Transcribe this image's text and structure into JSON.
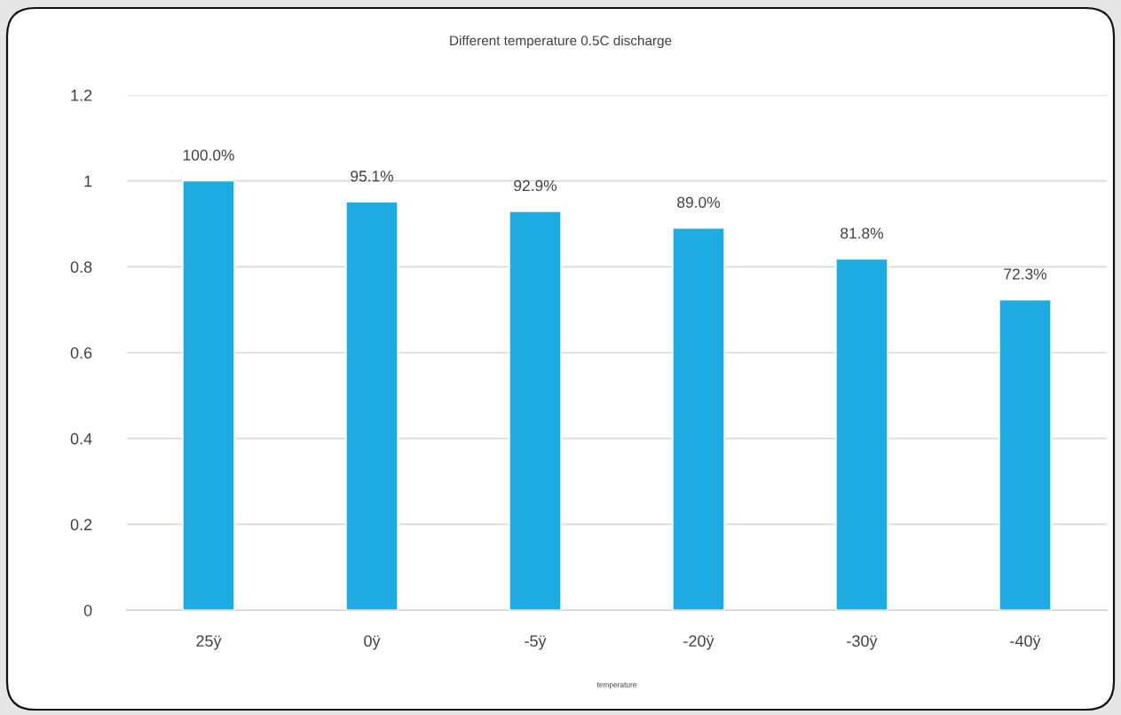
{
  "chart_data": {
    "type": "bar",
    "title": "Different temperature 0.5C discharge",
    "xlabel": "temperature",
    "categories": [
      "25ÿ",
      "0ÿ",
      "-5ÿ",
      "-20ÿ",
      "-30ÿ",
      "-40ÿ"
    ],
    "values": [
      1.0,
      0.951,
      0.929,
      0.89,
      0.818,
      0.723
    ],
    "value_labels": [
      "100.0%",
      "95.1%",
      "92.9%",
      "89.0%",
      "81.8%",
      "72.3%"
    ],
    "color": "#1eabe2",
    "ylim": [
      0,
      1.2
    ],
    "yticks": [
      0,
      0.2,
      0.4,
      0.6,
      0.8,
      1,
      1.2
    ],
    "grid": "y"
  }
}
